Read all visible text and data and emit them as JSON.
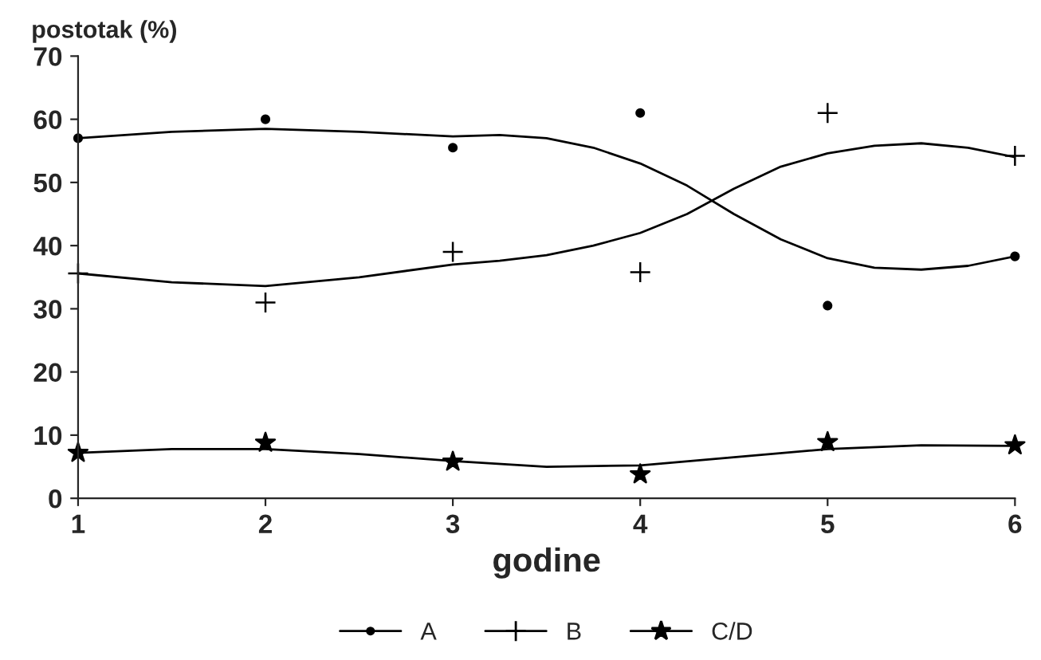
{
  "chart_data": {
    "type": "scatter",
    "xlabel": "godine",
    "ylabel": "postotak (%)",
    "xlim": [
      1,
      6
    ],
    "xticks": [
      1,
      2,
      3,
      4,
      5,
      6
    ],
    "ylim": [
      0,
      70
    ],
    "yticks": [
      0,
      10,
      20,
      30,
      40,
      50,
      60,
      70
    ],
    "grid": false,
    "legend": "bottom",
    "series": [
      {
        "name": "A",
        "color": "#000000",
        "marker": "circle",
        "x": [
          1,
          2,
          3,
          4,
          5,
          6
        ],
        "values": [
          57,
          60,
          55.5,
          61,
          30.5,
          38.3
        ]
      },
      {
        "name": "B",
        "color": "#000000",
        "marker": "cross",
        "x": [
          1,
          2,
          3,
          4,
          5,
          6
        ],
        "values": [
          35.6,
          31,
          39,
          35.8,
          61,
          54.2
        ]
      },
      {
        "name": "C/D",
        "color": "#000000",
        "marker": "star",
        "x": [
          1,
          2,
          3,
          4,
          5,
          6
        ],
        "values": [
          7.2,
          8.8,
          5.8,
          3.8,
          8.9,
          8.4
        ]
      },
      {
        "type": "line",
        "color": "#000000",
        "x": [
          1,
          1.5,
          2,
          2.5,
          3,
          3.25,
          3.5,
          3.75,
          4,
          4.25,
          4.5,
          4.75,
          5,
          5.25,
          5.5,
          5.75,
          6
        ],
        "values": [
          57,
          58,
          58.5,
          58,
          57.3,
          57.5,
          57,
          55.5,
          53,
          49.5,
          45,
          41,
          38,
          36.5,
          36.2,
          36.8,
          38.3
        ]
      },
      {
        "type": "line",
        "color": "#000000",
        "x": [
          1,
          1.5,
          2,
          2.5,
          3,
          3.25,
          3.5,
          3.75,
          4,
          4.25,
          4.5,
          4.75,
          5,
          5.25,
          5.5,
          5.75,
          6
        ],
        "values": [
          35.6,
          34.2,
          33.6,
          35,
          37,
          37.6,
          38.5,
          40,
          42,
          45,
          49,
          52.5,
          54.6,
          55.8,
          56.2,
          55.5,
          54
        ]
      },
      {
        "type": "line",
        "color": "#000000",
        "x": [
          1,
          1.5,
          2,
          2.5,
          3,
          3.5,
          4,
          4.5,
          5,
          5.5,
          6
        ],
        "values": [
          7.2,
          7.8,
          7.8,
          7,
          5.9,
          5,
          5.2,
          6.5,
          7.8,
          8.4,
          8.3
        ]
      }
    ]
  }
}
